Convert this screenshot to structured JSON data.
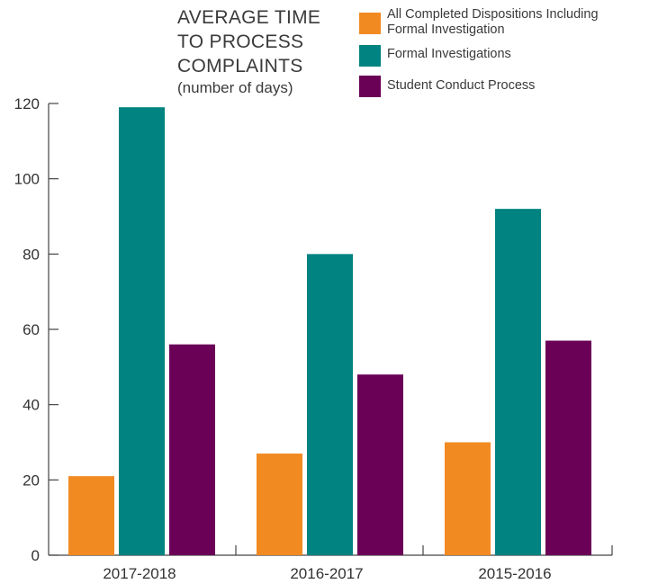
{
  "chart_data": {
    "type": "bar",
    "title_lines": [
      "AVERAGE TIME",
      "TO PROCESS",
      "COMPLAINTS"
    ],
    "subtitle": "(number of days)",
    "categories": [
      "2017-2018",
      "2016-2017",
      "2015-2016"
    ],
    "series": [
      {
        "name_lines": [
          "All Completed Dispositions Including",
          "Formal Investigation"
        ],
        "color": "#f28a22",
        "values": [
          21,
          27,
          30
        ]
      },
      {
        "name_lines": [
          "Formal Investigations"
        ],
        "color": "#008381",
        "values": [
          119,
          80,
          92
        ]
      },
      {
        "name_lines": [
          "Student Conduct Process"
        ],
        "color": "#6b0057",
        "values": [
          56,
          48,
          57
        ]
      }
    ],
    "yticks": [
      "0",
      "20",
      "40",
      "60",
      "80",
      "100",
      "120"
    ],
    "ylim": [
      0,
      120
    ],
    "grid": false,
    "legend_position": "top-right"
  }
}
